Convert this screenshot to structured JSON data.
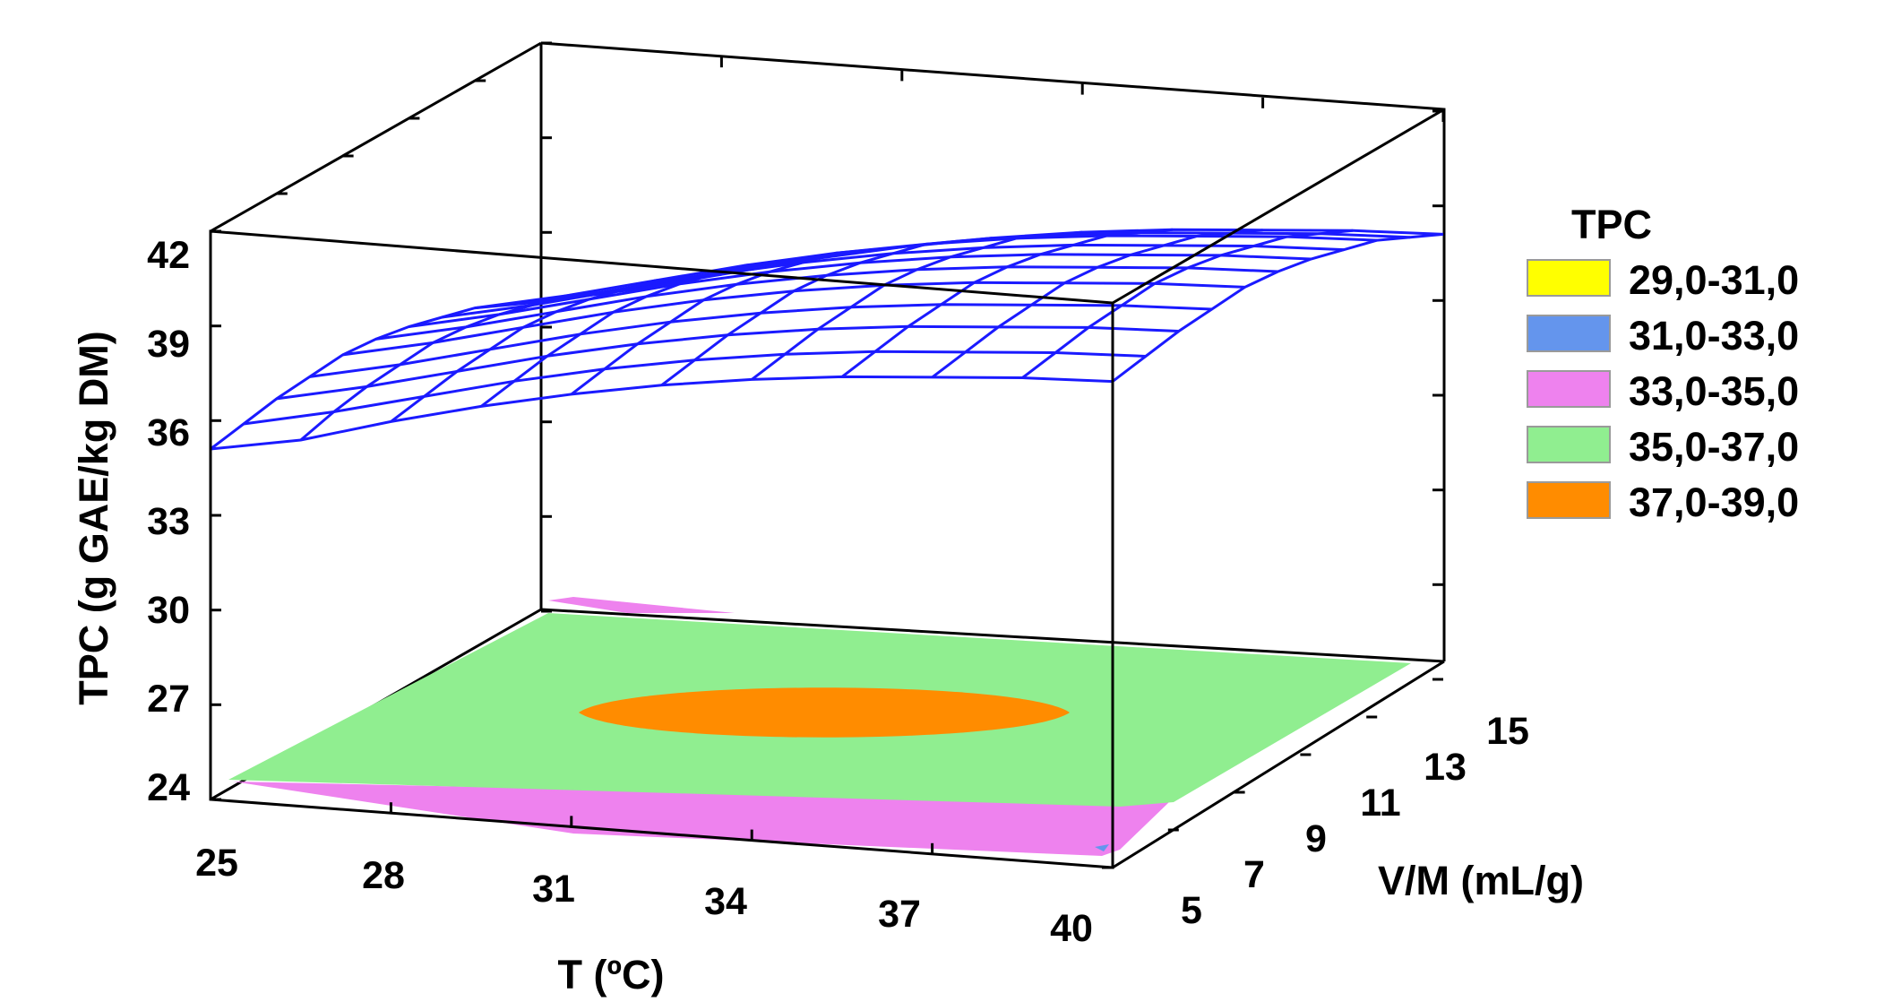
{
  "chart_data": {
    "type": "surface3d",
    "x_axis": {
      "label": "T (ºC)",
      "ticks": [
        "25",
        "28",
        "31",
        "34",
        "37",
        "40"
      ],
      "range": [
        25,
        40
      ]
    },
    "y_axis": {
      "label": "V/M (mL/g)",
      "ticks": [
        "5",
        "7",
        "9",
        "11",
        "13",
        "15"
      ],
      "range": [
        5,
        15
      ]
    },
    "z_axis": {
      "label": "TPC (g GAE/kg DM)",
      "ticks": [
        "24",
        "27",
        "30",
        "33",
        "36",
        "39",
        "42"
      ],
      "range": [
        24,
        42
      ]
    },
    "surface": {
      "color": "#1a1aff",
      "x": [
        25,
        26.5,
        28,
        29.5,
        31,
        32.5,
        34,
        35.5,
        37,
        38.5,
        40
      ],
      "y": [
        5,
        6,
        7,
        8,
        9,
        10,
        11,
        12,
        13,
        14,
        15
      ],
      "z": [
        [
          35.1,
          35.6,
          36.4,
          37.1,
          37.7,
          38.2,
          38.6,
          38.9,
          39.1,
          39.3,
          39.4
        ],
        [
          35.3,
          35.9,
          36.6,
          37.3,
          37.9,
          38.4,
          38.8,
          39.1,
          39.3,
          39.5,
          39.6
        ],
        [
          35.5,
          36.1,
          36.8,
          37.5,
          38.1,
          38.6,
          39.0,
          39.3,
          39.5,
          39.7,
          39.8
        ],
        [
          35.6,
          36.2,
          36.9,
          37.6,
          38.2,
          38.7,
          39.1,
          39.4,
          39.6,
          39.8,
          39.9
        ],
        [
          35.7,
          36.3,
          37.0,
          37.7,
          38.3,
          38.8,
          39.2,
          39.5,
          39.7,
          39.9,
          40.0
        ],
        [
          35.6,
          36.2,
          36.9,
          37.6,
          38.2,
          38.7,
          39.1,
          39.4,
          39.6,
          39.8,
          39.9
        ],
        [
          35.4,
          36.0,
          36.7,
          37.4,
          38.0,
          38.5,
          38.9,
          39.2,
          39.4,
          39.6,
          39.7
        ],
        [
          35.1,
          35.7,
          36.4,
          37.1,
          37.7,
          38.2,
          38.6,
          38.9,
          39.1,
          39.3,
          39.4
        ],
        [
          34.8,
          35.4,
          36.1,
          36.8,
          37.4,
          37.9,
          38.3,
          38.6,
          38.8,
          39.0,
          39.1
        ],
        [
          34.3,
          34.9,
          35.6,
          36.3,
          36.9,
          37.4,
          37.8,
          38.1,
          38.3,
          38.5,
          38.6
        ],
        [
          33.8,
          34.4,
          35.1,
          35.8,
          36.4,
          36.9,
          37.3,
          37.6,
          37.8,
          38.0,
          38.1
        ]
      ]
    },
    "contour_regions": [
      {
        "label": "33,0-35,0",
        "color": "#ee82ee",
        "region": "front and back edge strips"
      },
      {
        "label": "35,0-37,0",
        "color": "#90ee90",
        "region": "main area"
      },
      {
        "label": "37,0-39,0",
        "color": "#ff8c00",
        "region": "center ellipse, T 31-37, V/M 9-12"
      }
    ],
    "legend": {
      "title": "TPC",
      "position": "right",
      "entries": [
        {
          "label": "29,0-31,0",
          "color": "#ffff00"
        },
        {
          "label": "31,0-33,0",
          "color": "#6495ed"
        },
        {
          "label": "33,0-35,0",
          "color": "#ee82ee"
        },
        {
          "label": "35,0-37,0",
          "color": "#90ee90"
        },
        {
          "label": "37,0-39,0",
          "color": "#ff8c00"
        }
      ]
    }
  }
}
